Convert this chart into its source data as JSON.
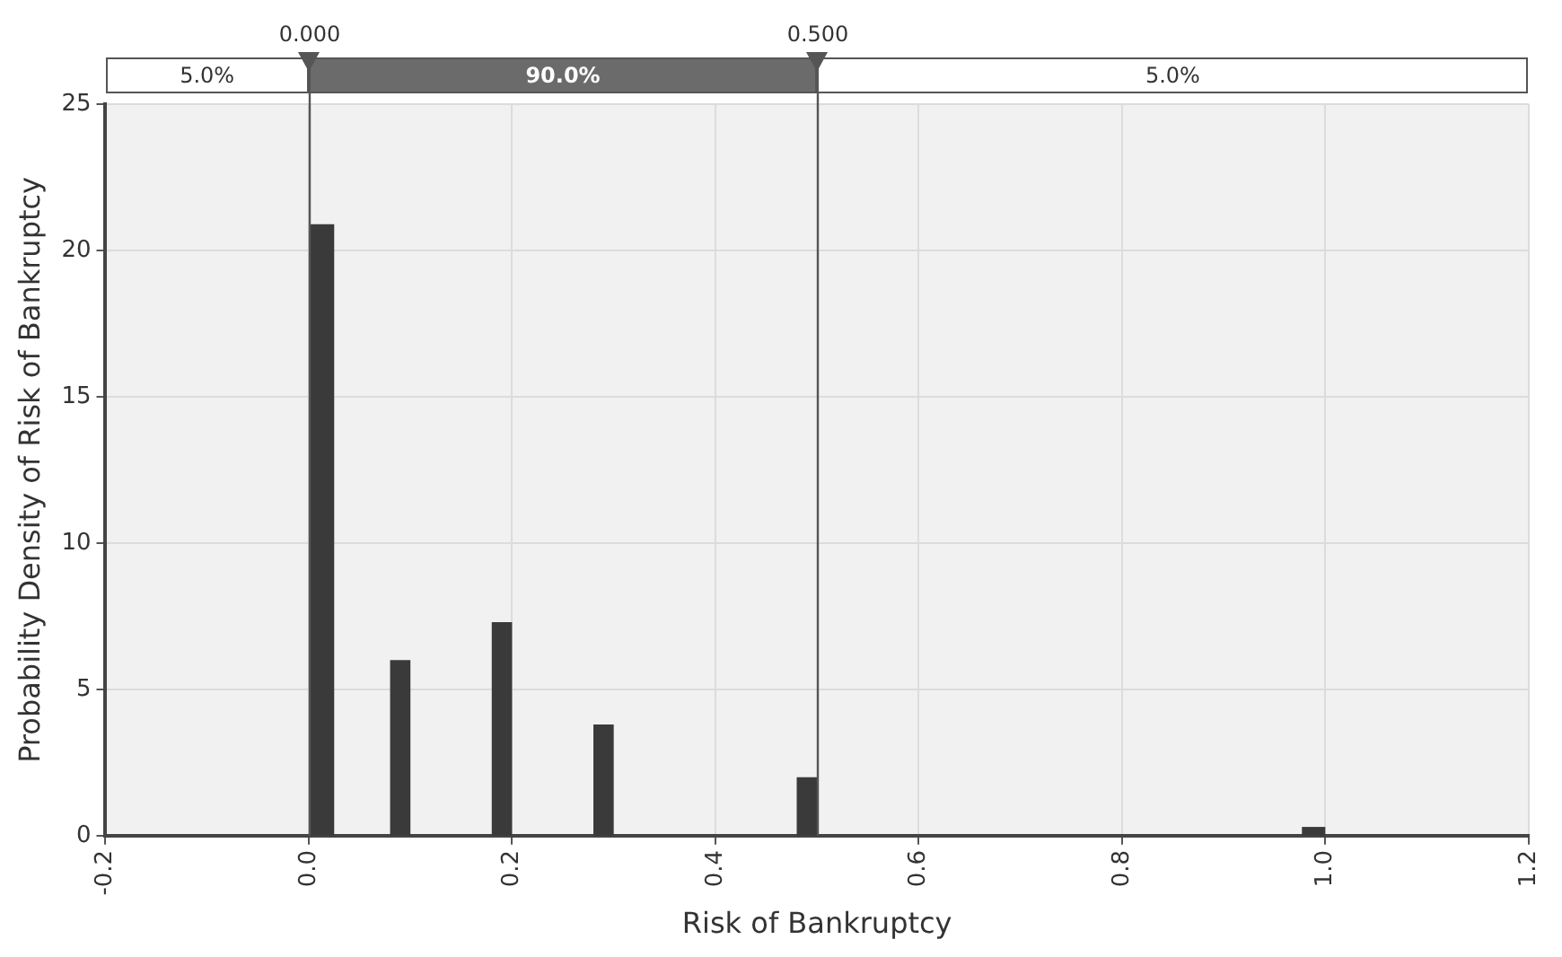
{
  "chart_data": {
    "type": "histogram",
    "xlabel": "Risk of Bankruptcy",
    "ylabel": "Probability Density of Risk of Bankruptcy",
    "bins": [
      0,
      0.025,
      0.08,
      0.1,
      0.18,
      0.2,
      0.28,
      0.3,
      0.48,
      0.5,
      0.977,
      1.0
    ],
    "values": [
      20.9,
      0,
      6.0,
      0,
      7.3,
      0,
      3.8,
      0,
      2.0,
      0,
      0.3
    ],
    "color": "#3a3a3a",
    "xlim": [
      -0.2,
      1.2
    ],
    "xticks": [
      {
        "value": -0.2,
        "label": "-0.2"
      },
      {
        "value": 0,
        "label": "0.0"
      },
      {
        "value": 0.2,
        "label": "0.2"
      },
      {
        "value": 0.4,
        "label": "0.4"
      },
      {
        "value": 0.6,
        "label": "0.6"
      },
      {
        "value": 0.8,
        "label": "0.8"
      },
      {
        "value": 1.0,
        "label": "1.0"
      },
      {
        "value": 1.2,
        "label": "1.2"
      }
    ],
    "ylim": [
      0,
      25
    ],
    "yticks": [
      0,
      5,
      10,
      15,
      20,
      25
    ],
    "grid": true,
    "annotations": [
      "5.0%",
      "90.0%",
      "5.0%"
    ],
    "ref_lines": [
      {
        "axis": "x",
        "value": 0,
        "label": "0.000",
        "color": "#555555"
      },
      {
        "axis": "x",
        "value": 0.5,
        "label": "0.500",
        "color": "#555555"
      }
    ]
  }
}
